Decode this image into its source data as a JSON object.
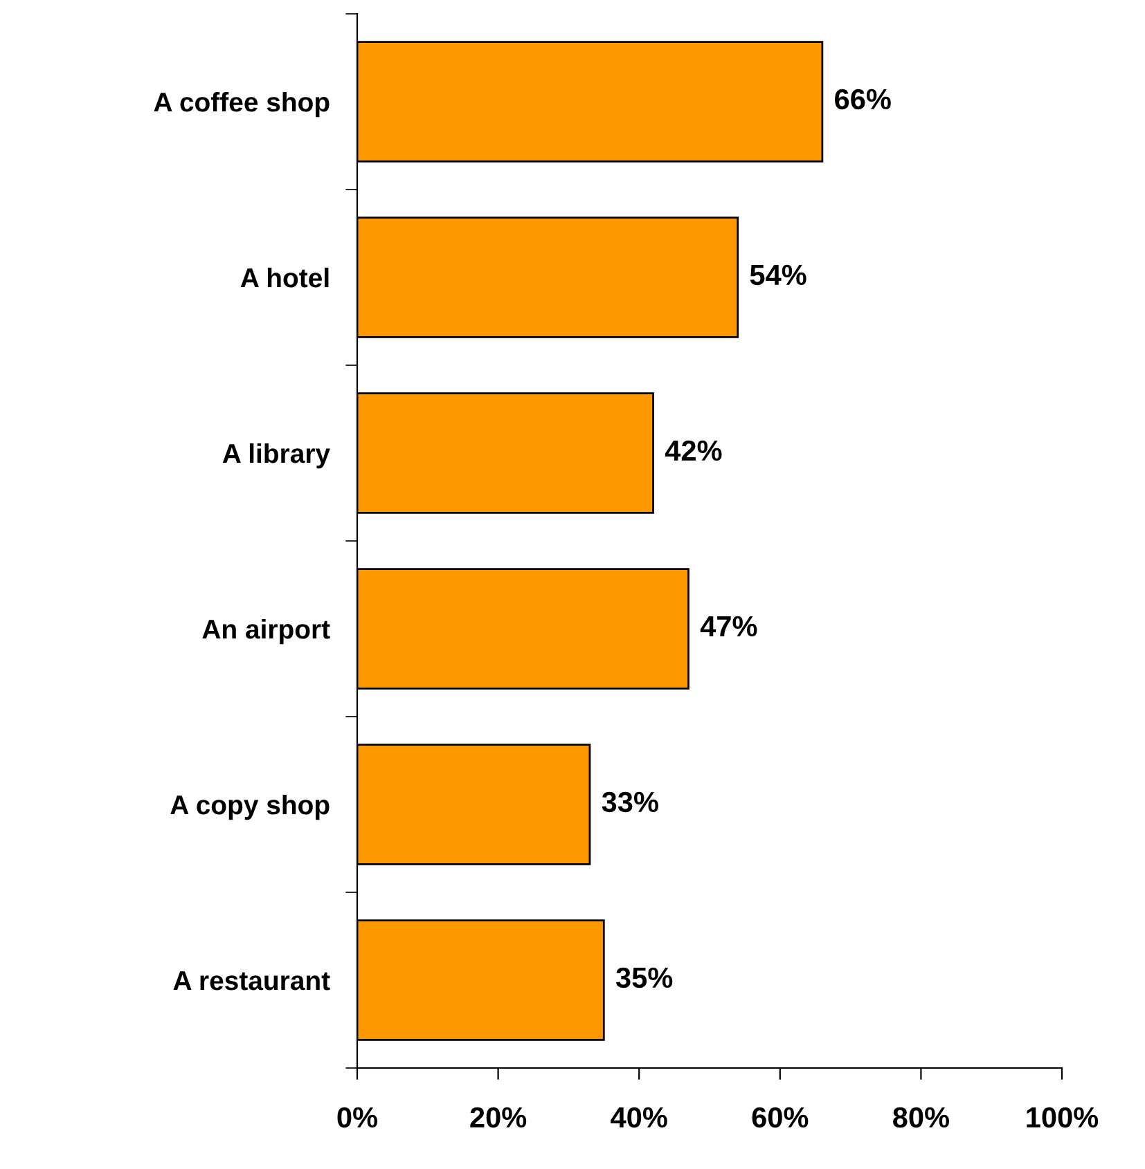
{
  "chart_data": {
    "type": "bar",
    "orientation": "horizontal",
    "categories": [
      "A coffee shop",
      "A hotel",
      "A library",
      "An airport",
      "A copy shop",
      "A restaurant"
    ],
    "values": [
      66,
      54,
      42,
      47,
      33,
      35
    ],
    "color": "#ff9900",
    "value_labels": [
      "66%",
      "54%",
      "42%",
      "47%",
      "33%",
      "35%"
    ],
    "xlim": [
      0,
      100
    ],
    "xticks": [
      {
        "value": 0,
        "label": "0%"
      },
      {
        "value": 20,
        "label": "20%"
      },
      {
        "value": 40,
        "label": "40%"
      },
      {
        "value": 60,
        "label": "60%"
      },
      {
        "value": 80,
        "label": "80%"
      },
      {
        "value": 100,
        "label": "100%"
      }
    ],
    "grid": false,
    "legend": false
  }
}
